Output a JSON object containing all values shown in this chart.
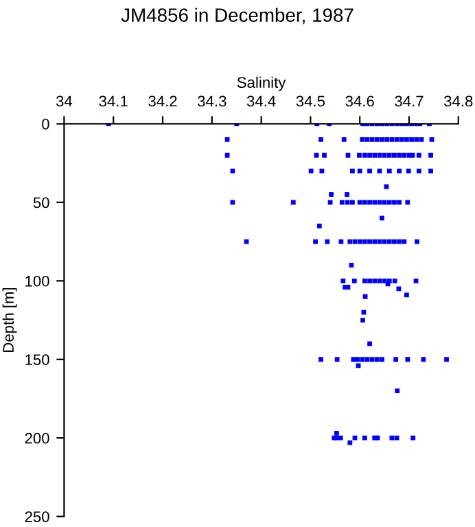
{
  "chart_data": {
    "type": "scatter",
    "title": "JM4856 in December, 1987",
    "xlabel": "Salinity",
    "ylabel": "Depth [m]",
    "xlim": [
      34,
      34.8
    ],
    "xticks": [
      34,
      34.1,
      34.2,
      34.3,
      34.4,
      34.5,
      34.6,
      34.7,
      34.8
    ],
    "ylim": [
      250,
      0
    ],
    "yticks": [
      0,
      50,
      100,
      150,
      200,
      250
    ],
    "grid": false,
    "marker": "square",
    "series": [
      {
        "color": "#0000ff",
        "x": [
          34.09,
          34.35,
          34.513,
          34.538,
          34.606,
          34.615,
          34.625,
          34.635,
          34.645,
          34.655,
          34.665,
          34.675,
          34.685,
          34.695,
          34.705,
          34.715,
          34.722,
          34.741,
          34.331,
          34.521,
          34.568,
          34.605,
          34.615,
          34.625,
          34.635,
          34.645,
          34.655,
          34.665,
          34.675,
          34.685,
          34.695,
          34.705,
          34.715,
          34.725,
          34.746,
          34.331,
          34.512,
          34.528,
          34.576,
          34.599,
          34.61,
          34.62,
          34.63,
          34.64,
          34.65,
          34.66,
          34.67,
          34.68,
          34.69,
          34.7,
          34.707,
          34.72,
          34.744,
          34.342,
          34.501,
          34.523,
          34.585,
          34.6,
          34.62,
          34.64,
          34.66,
          34.68,
          34.699,
          34.72,
          34.744,
          34.654,
          34.542,
          34.574,
          34.342,
          34.465,
          34.54,
          34.564,
          34.575,
          34.585,
          34.6,
          34.61,
          34.62,
          34.63,
          34.64,
          34.65,
          34.66,
          34.67,
          34.68,
          34.697,
          34.645,
          34.518,
          34.37,
          34.51,
          34.534,
          34.562,
          34.58,
          34.59,
          34.6,
          34.61,
          34.62,
          34.63,
          34.64,
          34.65,
          34.66,
          34.67,
          34.68,
          34.69,
          34.716,
          34.583,
          34.566,
          34.589,
          34.61,
          34.62,
          34.63,
          34.64,
          34.65,
          34.66,
          34.671,
          34.714,
          34.57,
          34.576,
          34.657,
          34.679,
          34.695,
          34.611,
          34.608,
          34.606,
          34.62,
          34.521,
          34.554,
          34.587,
          34.595,
          34.605,
          34.615,
          34.625,
          34.635,
          34.645,
          34.673,
          34.697,
          34.729,
          34.776,
          34.597,
          34.676,
          34.548,
          34.553,
          34.561,
          34.59,
          34.61,
          34.63,
          34.636,
          34.665,
          34.675,
          34.708,
          34.58,
          34.553
        ],
        "values": [
          0,
          0,
          0,
          0,
          0,
          0,
          0,
          0,
          0,
          0,
          0,
          0,
          0,
          0,
          0,
          0,
          0,
          0,
          10,
          10,
          10,
          10,
          10,
          10,
          10,
          10,
          10,
          10,
          10,
          10,
          10,
          10,
          10,
          10,
          10,
          20,
          20,
          20,
          20,
          20,
          20,
          20,
          20,
          20,
          20,
          20,
          20,
          20,
          20,
          20,
          20,
          20,
          20,
          30,
          30,
          30,
          30,
          30,
          30,
          30,
          30,
          30,
          30,
          30,
          30,
          40,
          45,
          45,
          50,
          50,
          50,
          50,
          50,
          50,
          50,
          50,
          50,
          50,
          50,
          50,
          50,
          50,
          50,
          50,
          60,
          65,
          75,
          75,
          75,
          75,
          75,
          75,
          75,
          75,
          75,
          75,
          75,
          75,
          75,
          75,
          75,
          75,
          75,
          90,
          100,
          100,
          100,
          100,
          100,
          100,
          100,
          100,
          100,
          100,
          104,
          104,
          102,
          105,
          109,
          110,
          120,
          125,
          140,
          150,
          150,
          150,
          150,
          150,
          150,
          150,
          150,
          150,
          150,
          150,
          150,
          150,
          154,
          170,
          200,
          200,
          200,
          200,
          200,
          200,
          200,
          200,
          200,
          200,
          203,
          197
        ]
      }
    ]
  }
}
